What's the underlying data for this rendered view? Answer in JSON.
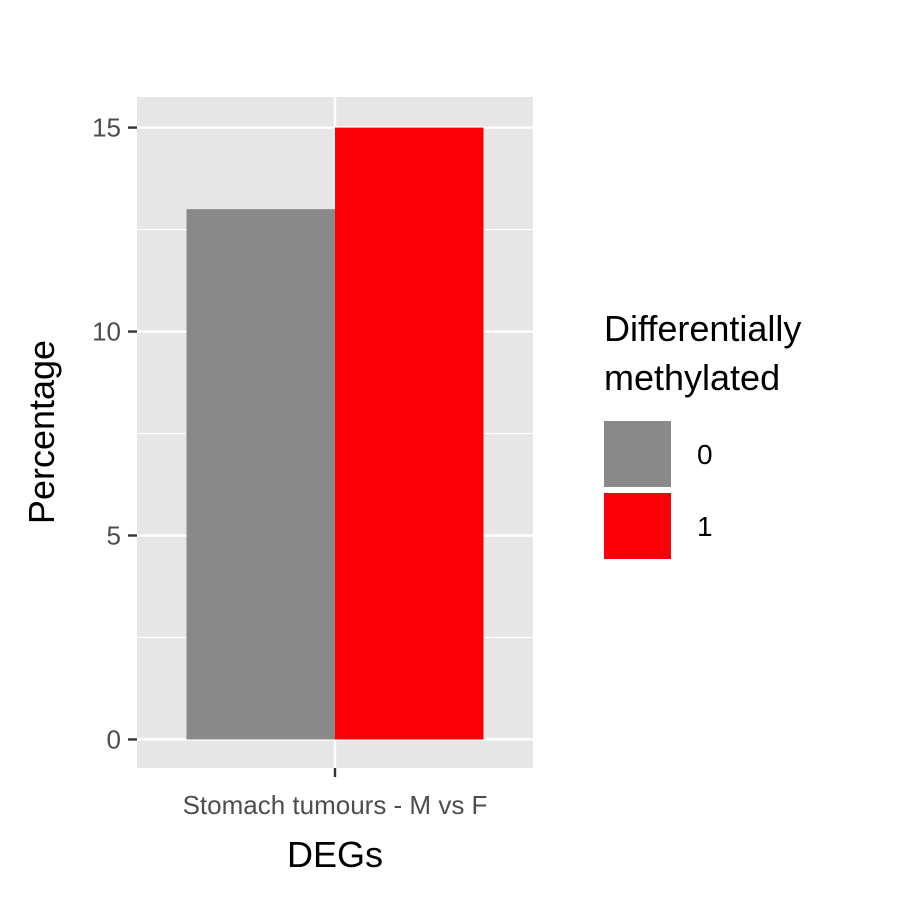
{
  "chart_data": {
    "type": "bar",
    "categories": [
      "Stomach tumours - M vs F"
    ],
    "series": [
      {
        "name": "0",
        "values": [
          13
        ]
      },
      {
        "name": "1",
        "values": [
          15
        ]
      }
    ],
    "xlabel": "DEGs",
    "ylabel": "Percentage",
    "ylim": [
      -0.7,
      15.75
    ],
    "yticks": [
      0,
      5,
      10,
      15
    ],
    "grid": true,
    "legend": {
      "title_lines": [
        "Differentially",
        "methylated"
      ],
      "placement": "right"
    },
    "colors": {
      "panel": "#e6e6e6",
      "grid": "#ffffff",
      "series": [
        "#898989",
        "#fb0007"
      ]
    }
  }
}
